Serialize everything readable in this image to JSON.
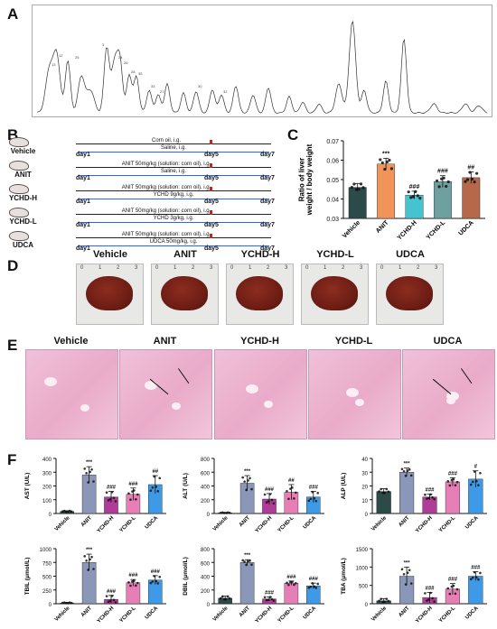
{
  "panels": {
    "A": "A",
    "B": "B",
    "C": "C",
    "D": "D",
    "E": "E",
    "F": "F"
  },
  "chromatogram": {
    "peak_labels": [
      "13",
      "12",
      "25",
      "3",
      "24",
      "26",
      "28",
      "35",
      "33",
      "27",
      "30",
      "32"
    ]
  },
  "protocol": {
    "groups": [
      {
        "name": "Vehicle",
        "line1": "Corn oil, i.g.",
        "line2": "Saline, i.g."
      },
      {
        "name": "ANIT",
        "line1": "ANIT 50mg/kg (solution: corn oil), i.g.",
        "line2": "Saline, i.g."
      },
      {
        "name": "YCHD-H",
        "line1": "ANIT 50mg/kg (solution: corn oil), i.g.",
        "line2": "YCHD 9g/kg, i.g."
      },
      {
        "name": "YCHD-L",
        "line1": "ANIT 50mg/kg (solution: corn oil), i.g.",
        "line2": "YCHD 3g/kg, i.g."
      },
      {
        "name": "UDCA",
        "line1": "ANIT 50mg/kg (solution: corn oil), i.g.",
        "line2": "UDCA 50mg/kg, i.g."
      }
    ],
    "day1": "day1",
    "day5": "day5",
    "day7": "day7"
  },
  "liver_headers": [
    "Vehicle",
    "ANIT",
    "YCHD-H",
    "YCHD-L",
    "UDCA"
  ],
  "ruler_ticks": [
    "0",
    "1",
    "2",
    "3"
  ],
  "histo_headers": [
    "Vehicle",
    "ANIT",
    "YCHD-H",
    "YCHD-L",
    "UDCA"
  ],
  "colors": {
    "Vehicle": "#2b4a48",
    "ANIT": "#f0945a",
    "YCHD-H": "#45c4cf",
    "YCHD-L": "#6fa0a0",
    "UDCA": "#b5684a",
    "F_Vehicle": "#2b4a48",
    "F_ANIT": "#8b97b8",
    "F_YCHD-H": "#b03c9a",
    "F_YCHD-L": "#e77fb7",
    "F_UDCA": "#3e9ae6"
  },
  "chart_data": [
    {
      "id": "C",
      "type": "bar",
      "ylabel": "Ratio of liver weight / body weight",
      "categories": [
        "Vehicle",
        "ANIT",
        "YCHD-H",
        "YCHD-L",
        "UDCA"
      ],
      "values": [
        0.046,
        0.058,
        0.042,
        0.049,
        0.051
      ],
      "errors": [
        0.002,
        0.003,
        0.002,
        0.003,
        0.003
      ],
      "annotations": [
        "",
        "***",
        "###",
        "###",
        "##"
      ],
      "ylim": [
        0.03,
        0.07
      ],
      "yticks": [
        "0.03",
        "0.04",
        "0.05",
        "0.06",
        "0.07"
      ]
    },
    {
      "id": "AST",
      "type": "bar",
      "ylabel": "AST (U/L)",
      "categories": [
        "Vehicle",
        "ANIT",
        "YCHD-H",
        "YCHD-L",
        "UDCA"
      ],
      "values": [
        15,
        280,
        120,
        140,
        210
      ],
      "errors": [
        5,
        60,
        40,
        45,
        65
      ],
      "annotations": [
        "",
        "***",
        "###",
        "###",
        "##"
      ],
      "ylim": [
        0,
        400
      ],
      "yticks": [
        "0",
        "100",
        "200",
        "300",
        "400"
      ]
    },
    {
      "id": "ALT",
      "type": "bar",
      "ylabel": "ALT (U/L)",
      "categories": [
        "Vehicle",
        "ANIT",
        "YCHD-H",
        "YCHD-L",
        "UDCA"
      ],
      "values": [
        10,
        440,
        210,
        310,
        240
      ],
      "errors": [
        4,
        110,
        80,
        110,
        80
      ],
      "annotations": [
        "",
        "***",
        "###",
        "##",
        "###"
      ],
      "ylim": [
        0,
        800
      ],
      "yticks": [
        "0",
        "200",
        "400",
        "600",
        "800"
      ]
    },
    {
      "id": "ALP",
      "type": "bar",
      "ylabel": "ALP (U/L)",
      "categories": [
        "Vehicle",
        "ANIT",
        "YCHD-H",
        "YCHD-L",
        "UDCA"
      ],
      "values": [
        16,
        30,
        12,
        23,
        25
      ],
      "errors": [
        2,
        3,
        2,
        3,
        6
      ],
      "annotations": [
        "",
        "***",
        "###",
        "###",
        "#"
      ],
      "ylim": [
        0,
        40
      ],
      "yticks": [
        "0",
        "10",
        "20",
        "30",
        "40"
      ]
    },
    {
      "id": "TBIL",
      "type": "bar",
      "ylabel": "TBIL (μmol/L)",
      "categories": [
        "Vehicle",
        "ANIT",
        "YCHD-H",
        "YCHD-L",
        "UDCA"
      ],
      "values": [
        15,
        750,
        80,
        380,
        430
      ],
      "errors": [
        8,
        150,
        70,
        60,
        80
      ],
      "annotations": [
        "",
        "***",
        "###",
        "###",
        "###"
      ],
      "ylim": [
        0,
        1000
      ],
      "yticks": [
        "0",
        "250",
        "500",
        "750",
        "1000"
      ]
    },
    {
      "id": "DBIL",
      "type": "bar",
      "ylabel": "DBIL (μmol/L)",
      "categories": [
        "Vehicle",
        "ANIT",
        "YCHD-H",
        "YCHD-L",
        "UDCA"
      ],
      "values": [
        80,
        600,
        70,
        300,
        260
      ],
      "errors": [
        30,
        40,
        30,
        30,
        40
      ],
      "annotations": [
        "",
        "***",
        "###",
        "###",
        "###"
      ],
      "ylim": [
        0,
        800
      ],
      "yticks": [
        "0",
        "200",
        "400",
        "600",
        "800"
      ]
    },
    {
      "id": "TBA",
      "type": "bar",
      "ylabel": "TBA (μmol/L)",
      "categories": [
        "Vehicle",
        "ANIT",
        "YCHD-H",
        "YCHD-L",
        "UDCA"
      ],
      "values": [
        80,
        750,
        170,
        400,
        750
      ],
      "errors": [
        60,
        250,
        140,
        150,
        120
      ],
      "annotations": [
        "",
        "***",
        "###",
        "###",
        "###"
      ],
      "ylim": [
        0,
        1500
      ],
      "yticks": [
        "0",
        "500",
        "1000",
        "1500"
      ]
    }
  ]
}
